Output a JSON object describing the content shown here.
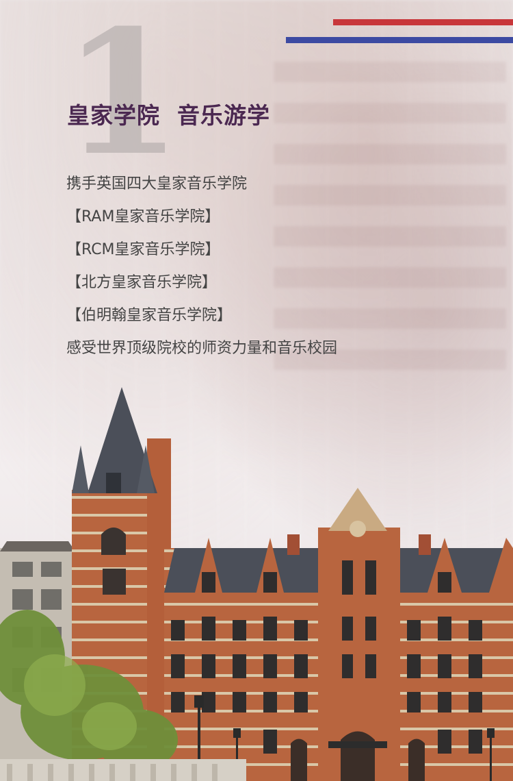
{
  "number": "1",
  "title": "皇家学院  音乐游学",
  "lines": [
    "携手英国四大皇家音乐学院",
    "【RAM皇家音乐学院】",
    "【RCM皇家音乐学院】",
    "【北方皇家音乐学院】",
    "【伯明翰皇家音乐学院】",
    "感受世界顶级院校的师资力量和音乐校园"
  ],
  "colors": {
    "title": "#4b2851",
    "stripe_red": "#c8363a",
    "stripe_blue": "#3c4aa2",
    "brick": "#b8653f",
    "roof": "#4b4f59"
  }
}
